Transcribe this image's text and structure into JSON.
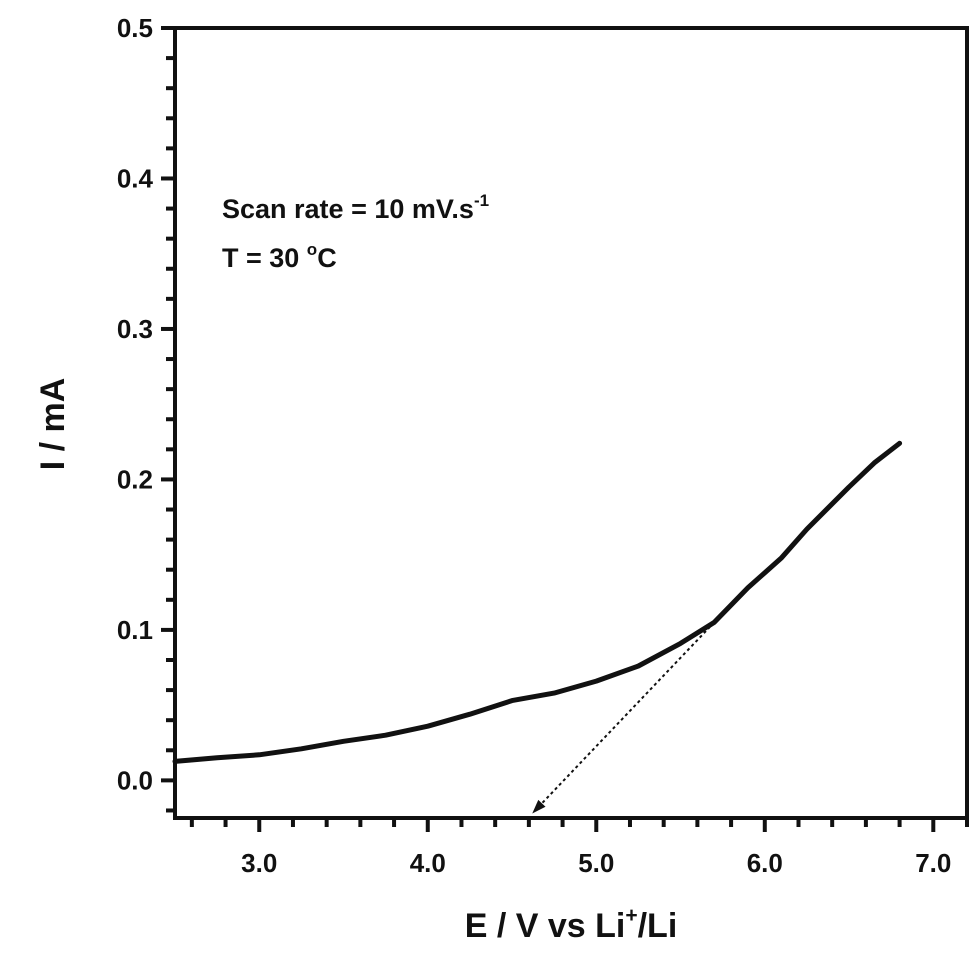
{
  "chart_data": {
    "type": "line",
    "title": "",
    "xlabel": "E / V vs Li+/Li",
    "xlabel_parts": {
      "main": "E / V vs Li",
      "sup": "+",
      "tail": "/Li"
    },
    "ylabel": "I / mA",
    "xlim": [
      2.5,
      7.2
    ],
    "ylim": [
      -0.025,
      0.5
    ],
    "x_ticks": [
      3.0,
      4.0,
      5.0,
      6.0,
      7.0
    ],
    "x_tick_labels": [
      "3.0",
      "4.0",
      "5.0",
      "6.0",
      "7.0"
    ],
    "x_minor_step": 0.2,
    "y_ticks": [
      0.0,
      0.1,
      0.2,
      0.3,
      0.4,
      0.5
    ],
    "y_tick_labels": [
      "0.0",
      "0.1",
      "0.2",
      "0.3",
      "0.4",
      "0.5"
    ],
    "y_minor_step": 0.02,
    "grid": false,
    "series": [
      {
        "color": "#111111",
        "x": [
          2.5,
          2.75,
          3.0,
          3.25,
          3.5,
          3.75,
          4.0,
          4.25,
          4.5,
          4.75,
          5.0,
          5.25,
          5.5,
          5.7,
          5.9,
          6.0,
          6.1,
          6.25,
          6.5,
          6.65,
          6.8
        ],
        "y": [
          0.0126,
          0.015,
          0.017,
          0.021,
          0.026,
          0.03,
          0.036,
          0.044,
          0.053,
          0.058,
          0.066,
          0.076,
          0.091,
          0.105,
          0.128,
          0.138,
          0.148,
          0.167,
          0.195,
          0.211,
          0.224
        ]
      }
    ],
    "annotations": {
      "line1_main": "Scan rate = 10 mV.s",
      "line1_sup": "-1",
      "line2_main": "T = 30 ",
      "line2_sup": "o",
      "line2_tail": "C"
    },
    "tangent_arrow": {
      "from": [
        5.7,
        0.105
      ],
      "to": [
        4.62,
        -0.022
      ],
      "style": "dotted"
    }
  }
}
